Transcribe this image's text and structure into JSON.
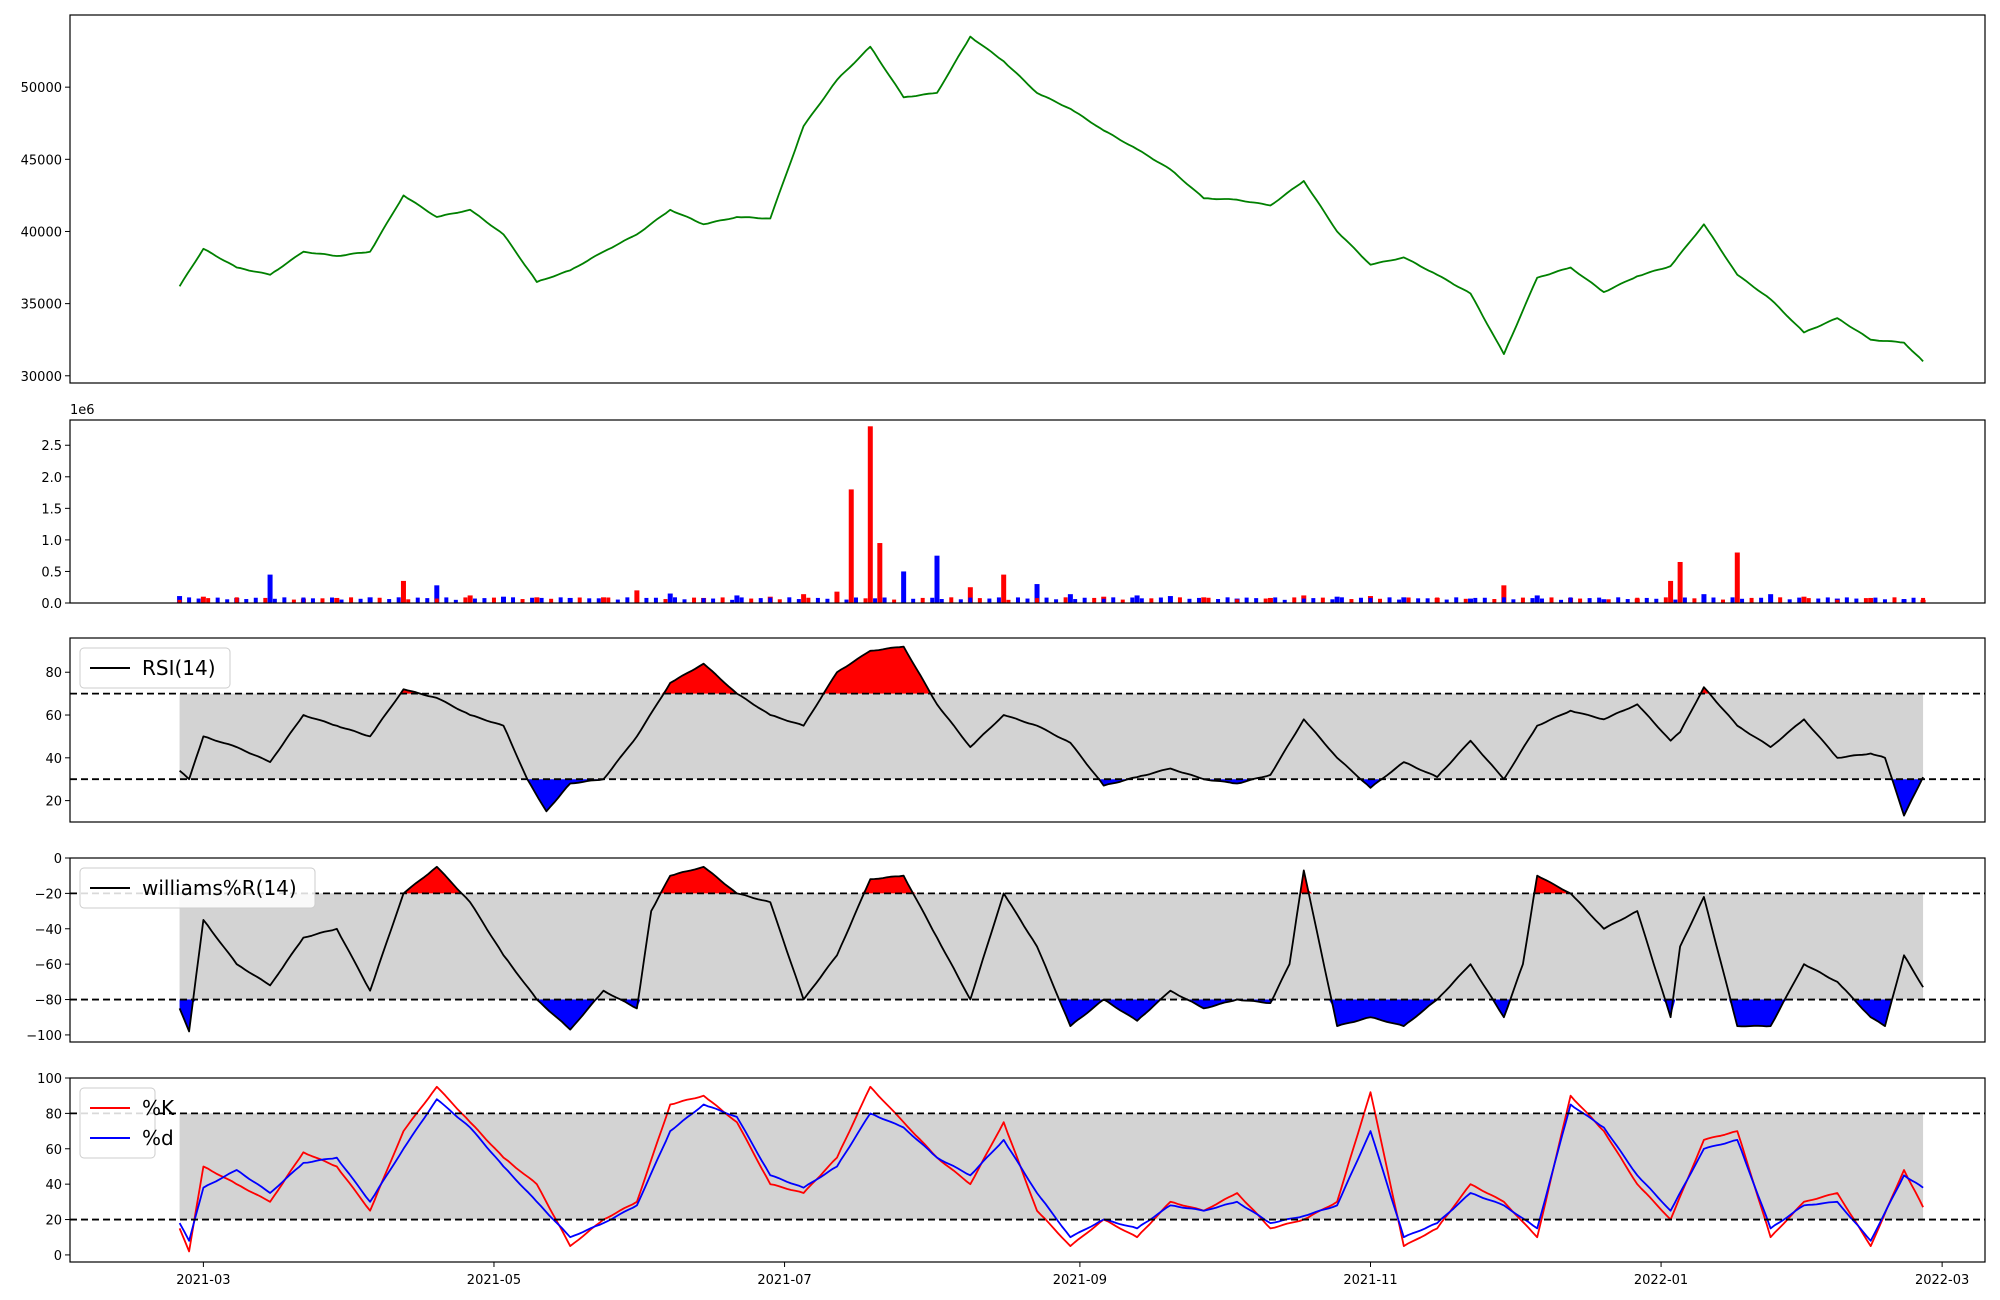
{
  "chart_data": [
    {
      "id": "price",
      "type": "line",
      "color": "#008000",
      "ylim": [
        29500,
        55000
      ],
      "yticks": [
        30000,
        35000,
        40000,
        45000,
        50000
      ],
      "ytick_labels": [
        "30000",
        "35000",
        "40000",
        "45000",
        "50000"
      ],
      "x": [
        "2021-02-24",
        "2021-03-01",
        "2021-03-08",
        "2021-03-15",
        "2021-03-22",
        "2021-03-29",
        "2021-04-05",
        "2021-04-12",
        "2021-04-19",
        "2021-04-26",
        "2021-05-03",
        "2021-05-10",
        "2021-05-17",
        "2021-05-24",
        "2021-05-31",
        "2021-06-07",
        "2021-06-14",
        "2021-06-21",
        "2021-06-28",
        "2021-07-05",
        "2021-07-12",
        "2021-07-19",
        "2021-07-26",
        "2021-08-02",
        "2021-08-09",
        "2021-08-16",
        "2021-08-23",
        "2021-08-30",
        "2021-09-06",
        "2021-09-13",
        "2021-09-20",
        "2021-09-27",
        "2021-10-04",
        "2021-10-11",
        "2021-10-18",
        "2021-10-25",
        "2021-11-01",
        "2021-11-08",
        "2021-11-15",
        "2021-11-22",
        "2021-11-29",
        "2021-12-06",
        "2021-12-13",
        "2021-12-20",
        "2021-12-27",
        "2022-01-03",
        "2022-01-10",
        "2022-01-17",
        "2022-01-24",
        "2022-01-31",
        "2022-02-07",
        "2022-02-14",
        "2022-02-21",
        "2022-02-25"
      ],
      "values": [
        36200,
        38800,
        37500,
        37000,
        38600,
        38300,
        38600,
        42500,
        41000,
        41500,
        39800,
        36500,
        37300,
        38600,
        39800,
        41500,
        40500,
        41000,
        40900,
        47300,
        50500,
        52800,
        49300,
        49600,
        53500,
        51800,
        49600,
        48500,
        47000,
        45700,
        44300,
        42300,
        42200,
        41800,
        43500,
        40000,
        37700,
        38200,
        37000,
        35700,
        31500,
        36800,
        37500,
        35800,
        36900,
        37600,
        40500,
        37000,
        35300,
        33000,
        34000,
        32500,
        32300,
        31000
      ],
      "series": [
        {
          "values": [
            36200,
            38800,
            37500,
            37000,
            38600,
            38300,
            38600,
            42500,
            41000,
            41500,
            39800,
            36500,
            37300,
            38600,
            39800,
            41500,
            40500,
            41000,
            40900,
            47300,
            50500,
            52800,
            49300,
            49600,
            53500,
            51800,
            49600,
            48500,
            47000,
            45700,
            44300,
            42300,
            42200,
            41800,
            43500,
            40000,
            37700,
            38200,
            37000,
            35700,
            31500,
            36800,
            37500,
            35800,
            36900,
            37600,
            40500,
            37000,
            35300,
            33000,
            34000,
            32500,
            32300,
            31000
          ]
        }
      ]
    },
    {
      "id": "volume",
      "type": "bar",
      "scale_label": "1e6",
      "ylim": [
        0,
        2.9
      ],
      "yticks": [
        0,
        0.5,
        1.0,
        1.5,
        2.0,
        2.5
      ],
      "ytick_labels": [
        "0.0",
        "0.5",
        "1.0",
        "1.5",
        "2.0",
        "2.5"
      ],
      "bar_colors": {
        "up": "#ff0000",
        "down": "#0000ff"
      },
      "x": [
        "2021-02-24",
        "2021-03-01",
        "2021-03-08",
        "2021-03-15",
        "2021-03-22",
        "2021-03-29",
        "2021-04-05",
        "2021-04-12",
        "2021-04-19",
        "2021-04-26",
        "2021-05-03",
        "2021-05-10",
        "2021-05-17",
        "2021-05-24",
        "2021-05-31",
        "2021-06-07",
        "2021-06-14",
        "2021-06-21",
        "2021-06-28",
        "2021-07-05",
        "2021-07-12",
        "2021-07-15",
        "2021-07-19",
        "2021-07-21",
        "2021-07-26",
        "2021-08-02",
        "2021-08-09",
        "2021-08-16",
        "2021-08-23",
        "2021-08-30",
        "2021-09-06",
        "2021-09-13",
        "2021-09-20",
        "2021-09-27",
        "2021-10-04",
        "2021-10-11",
        "2021-10-18",
        "2021-10-25",
        "2021-11-01",
        "2021-11-08",
        "2021-11-15",
        "2021-11-22",
        "2021-11-29",
        "2021-12-06",
        "2021-12-13",
        "2021-12-20",
        "2021-12-27",
        "2022-01-03",
        "2022-01-05",
        "2022-01-10",
        "2022-01-17",
        "2022-01-24",
        "2022-01-31",
        "2022-02-07",
        "2022-02-14",
        "2022-02-21",
        "2022-02-25"
      ],
      "values": [
        0.11,
        0.1,
        0.08,
        0.45,
        0.07,
        0.08,
        0.09,
        0.35,
        0.28,
        0.12,
        0.1,
        0.09,
        0.08,
        0.09,
        0.2,
        0.15,
        0.08,
        0.12,
        0.1,
        0.14,
        0.18,
        1.8,
        2.8,
        0.95,
        0.5,
        0.75,
        0.25,
        0.45,
        0.3,
        0.14,
        0.1,
        0.12,
        0.11,
        0.09,
        0.07,
        0.08,
        0.12,
        0.1,
        0.11,
        0.09,
        0.08,
        0.07,
        0.28,
        0.12,
        0.08,
        0.06,
        0.07,
        0.35,
        0.65,
        0.14,
        0.8,
        0.14,
        0.1,
        0.07,
        0.08,
        0.06,
        0.05
      ],
      "up_flags": [
        false,
        true,
        false,
        false,
        true,
        true,
        false,
        true,
        false,
        true,
        false,
        true,
        false,
        true,
        true,
        false,
        true,
        false,
        true,
        true,
        true,
        true,
        true,
        true,
        false,
        false,
        true,
        true,
        false,
        false,
        true,
        false,
        false,
        true,
        false,
        true,
        true,
        false,
        true,
        false,
        true,
        false,
        true,
        false,
        true,
        false,
        true,
        true,
        true,
        false,
        true,
        false,
        true,
        false,
        true,
        false,
        true
      ]
    },
    {
      "id": "rsi",
      "type": "line",
      "legend": [
        "RSI(14)"
      ],
      "ylim": [
        10,
        96
      ],
      "yticks": [
        20,
        40,
        60,
        80
      ],
      "ytick_labels": [
        "20",
        "40",
        "60",
        "80"
      ],
      "band": [
        30,
        70
      ],
      "x": [
        "2021-02-24",
        "2021-02-26",
        "2021-03-01",
        "2021-03-08",
        "2021-03-15",
        "2021-03-22",
        "2021-03-29",
        "2021-04-05",
        "2021-04-12",
        "2021-04-19",
        "2021-04-26",
        "2021-05-03",
        "2021-05-08",
        "2021-05-12",
        "2021-05-17",
        "2021-05-24",
        "2021-05-31",
        "2021-06-07",
        "2021-06-14",
        "2021-06-21",
        "2021-06-28",
        "2021-07-05",
        "2021-07-12",
        "2021-07-19",
        "2021-07-26",
        "2021-08-02",
        "2021-08-09",
        "2021-08-16",
        "2021-08-23",
        "2021-08-30",
        "2021-09-06",
        "2021-09-13",
        "2021-09-20",
        "2021-09-27",
        "2021-10-04",
        "2021-10-11",
        "2021-10-18",
        "2021-10-25",
        "2021-11-01",
        "2021-11-08",
        "2021-11-15",
        "2021-11-22",
        "2021-11-29",
        "2021-12-06",
        "2021-12-13",
        "2021-12-20",
        "2021-12-27",
        "2022-01-03",
        "2022-01-05",
        "2022-01-10",
        "2022-01-17",
        "2022-01-24",
        "2022-01-31",
        "2022-02-07",
        "2022-02-14",
        "2022-02-17",
        "2022-02-21",
        "2022-02-25"
      ],
      "values": [
        34,
        30,
        50,
        45,
        38,
        60,
        55,
        50,
        72,
        68,
        60,
        55,
        30,
        15,
        28,
        30,
        50,
        75,
        84,
        70,
        60,
        55,
        80,
        90,
        92,
        65,
        45,
        60,
        55,
        47,
        27,
        31,
        35,
        30,
        28,
        32,
        58,
        40,
        26,
        38,
        31,
        48,
        30,
        55,
        62,
        58,
        65,
        48,
        52,
        73,
        55,
        45,
        58,
        40,
        42,
        40,
        13,
        31
      ]
    },
    {
      "id": "williams",
      "type": "line",
      "legend": [
        "williams%R(14)"
      ],
      "ylim": [
        -104,
        0
      ],
      "yticks": [
        -100,
        -80,
        -60,
        -40,
        -20,
        0
      ],
      "ytick_labels": [
        "−100",
        "−80",
        "−60",
        "−40",
        "−20",
        "0"
      ],
      "band": [
        -80,
        -20
      ],
      "x": [
        "2021-02-24",
        "2021-02-26",
        "2021-03-01",
        "2021-03-08",
        "2021-03-15",
        "2021-03-22",
        "2021-03-29",
        "2021-04-05",
        "2021-04-12",
        "2021-04-19",
        "2021-04-26",
        "2021-05-03",
        "2021-05-10",
        "2021-05-17",
        "2021-05-24",
        "2021-05-31",
        "2021-06-03",
        "2021-06-07",
        "2021-06-14",
        "2021-06-21",
        "2021-06-28",
        "2021-07-05",
        "2021-07-12",
        "2021-07-19",
        "2021-07-26",
        "2021-08-02",
        "2021-08-09",
        "2021-08-16",
        "2021-08-23",
        "2021-08-30",
        "2021-09-06",
        "2021-09-13",
        "2021-09-20",
        "2021-09-27",
        "2021-10-04",
        "2021-10-11",
        "2021-10-15",
        "2021-10-18",
        "2021-10-25",
        "2021-11-01",
        "2021-11-08",
        "2021-11-15",
        "2021-11-22",
        "2021-11-29",
        "2021-12-03",
        "2021-12-06",
        "2021-12-13",
        "2021-12-20",
        "2021-12-27",
        "2022-01-03",
        "2022-01-05",
        "2022-01-10",
        "2022-01-17",
        "2022-01-24",
        "2022-01-31",
        "2022-02-07",
        "2022-02-14",
        "2022-02-17",
        "2022-02-21",
        "2022-02-25"
      ],
      "values": [
        -85,
        -98,
        -35,
        -60,
        -72,
        -45,
        -40,
        -75,
        -20,
        -5,
        -25,
        -55,
        -80,
        -97,
        -75,
        -85,
        -30,
        -10,
        -5,
        -20,
        -25,
        -80,
        -55,
        -12,
        -10,
        -45,
        -80,
        -20,
        -50,
        -95,
        -80,
        -92,
        -75,
        -85,
        -80,
        -82,
        -60,
        -7,
        -95,
        -90,
        -95,
        -80,
        -60,
        -90,
        -60,
        -10,
        -20,
        -40,
        -30,
        -90,
        -50,
        -22,
        -95,
        -95,
        -60,
        -70,
        -90,
        -95,
        -55,
        -73
      ]
    },
    {
      "id": "stochastic",
      "type": "line",
      "legend": [
        "%K",
        "%d"
      ],
      "ylim": [
        -4,
        100
      ],
      "yticks": [
        0,
        20,
        40,
        60,
        80,
        100
      ],
      "ytick_labels": [
        "0",
        "20",
        "40",
        "60",
        "80",
        "100"
      ],
      "band": [
        20,
        80
      ],
      "xticks": [
        "2021-03-01",
        "2021-05-01",
        "2021-07-01",
        "2021-09-01",
        "2021-11-01",
        "2022-01-01",
        "2022-03-01"
      ],
      "xtick_labels": [
        "2021-03",
        "2021-05",
        "2021-07",
        "2021-09",
        "2021-11",
        "2022-01",
        "2022-03"
      ],
      "x": [
        "2021-02-24",
        "2021-02-26",
        "2021-03-01",
        "2021-03-08",
        "2021-03-15",
        "2021-03-22",
        "2021-03-29",
        "2021-04-05",
        "2021-04-12",
        "2021-04-19",
        "2021-04-26",
        "2021-05-03",
        "2021-05-10",
        "2021-05-17",
        "2021-05-24",
        "2021-05-31",
        "2021-06-07",
        "2021-06-14",
        "2021-06-21",
        "2021-06-28",
        "2021-07-05",
        "2021-07-12",
        "2021-07-19",
        "2021-07-26",
        "2021-08-02",
        "2021-08-09",
        "2021-08-16",
        "2021-08-23",
        "2021-08-30",
        "2021-09-06",
        "2021-09-13",
        "2021-09-20",
        "2021-09-27",
        "2021-10-04",
        "2021-10-11",
        "2021-10-18",
        "2021-10-25",
        "2021-11-01",
        "2021-11-08",
        "2021-11-15",
        "2021-11-22",
        "2021-11-29",
        "2021-12-06",
        "2021-12-13",
        "2021-12-20",
        "2021-12-27",
        "2022-01-03",
        "2022-01-10",
        "2022-01-17",
        "2022-01-24",
        "2022-01-31",
        "2022-02-07",
        "2022-02-14",
        "2022-02-21",
        "2022-02-25"
      ],
      "series": [
        {
          "name": "%K",
          "color": "#ff0000",
          "values": [
            15,
            2,
            50,
            40,
            30,
            58,
            50,
            25,
            70,
            95,
            75,
            55,
            40,
            5,
            20,
            30,
            85,
            90,
            75,
            40,
            35,
            55,
            95,
            75,
            55,
            40,
            75,
            25,
            5,
            20,
            10,
            30,
            25,
            35,
            15,
            20,
            30,
            92,
            5,
            15,
            40,
            30,
            10,
            90,
            70,
            40,
            20,
            65,
            70,
            10,
            30,
            35,
            5,
            48,
            27
          ]
        },
        {
          "name": "%d",
          "color": "#0000ff",
          "values": [
            18,
            8,
            38,
            48,
            35,
            52,
            55,
            30,
            60,
            88,
            72,
            50,
            30,
            10,
            18,
            28,
            70,
            85,
            78,
            45,
            38,
            50,
            80,
            72,
            55,
            45,
            65,
            35,
            10,
            20,
            15,
            28,
            25,
            30,
            18,
            22,
            28,
            70,
            10,
            18,
            35,
            28,
            15,
            85,
            72,
            45,
            25,
            60,
            65,
            15,
            28,
            30,
            8,
            45,
            38
          ]
        }
      ]
    }
  ]
}
